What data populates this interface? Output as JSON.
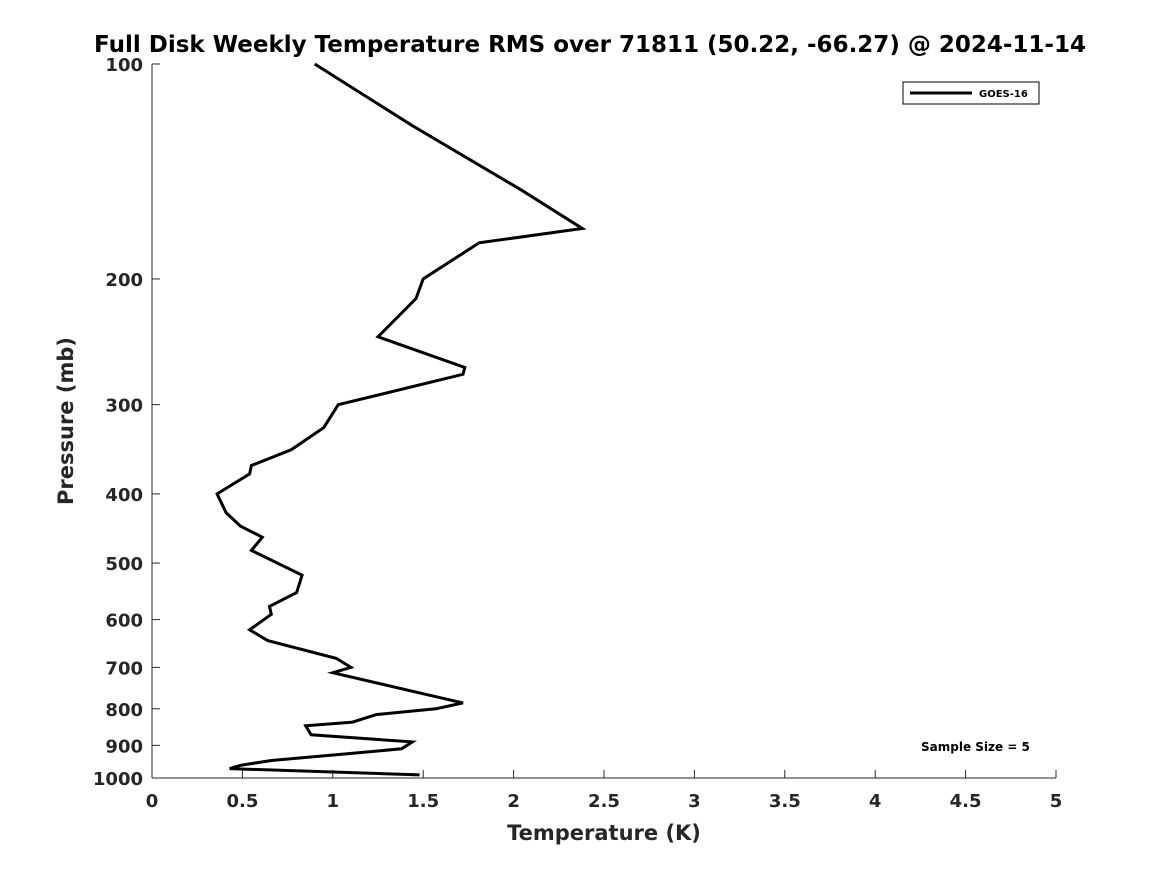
{
  "chart_data": {
    "type": "line",
    "title": "Full Disk Weekly Temperature RMS over 71811 (50.22, -66.27) @ 2024-11-14",
    "xlabel": "Temperature (K)",
    "ylabel": "Pressure (mb)",
    "xlim": [
      0,
      5
    ],
    "ylim": [
      100,
      1000
    ],
    "yscale": "log",
    "y_reversed": true,
    "grid": false,
    "legend_position": "top-right",
    "x_ticks": [
      "0",
      "0.5",
      "1",
      "1.5",
      "2",
      "2.5",
      "3",
      "3.5",
      "4",
      "4.5",
      "5"
    ],
    "y_ticks": [
      "100",
      "200",
      "300",
      "400",
      "500",
      "600",
      "700",
      "800",
      "900",
      "1000"
    ],
    "series": [
      {
        "name": "GOES-16",
        "color": "#000000",
        "x": [
          0.9,
          1.44,
          2.04,
          2.38,
          1.81,
          1.5,
          1.46,
          1.25,
          1.73,
          1.72,
          1.03,
          0.95,
          0.77,
          0.55,
          0.54,
          0.36,
          0.41,
          0.49,
          0.61,
          0.55,
          0.83,
          0.8,
          0.65,
          0.66,
          0.54,
          0.64,
          1.02,
          1.1,
          1.0,
          1.48,
          1.72,
          1.57,
          1.24,
          1.11,
          0.85,
          0.88,
          1.44,
          1.38,
          1.08,
          0.66,
          0.49,
          0.43,
          1.48
        ],
        "y": [
          100,
          122,
          150,
          170,
          178,
          200,
          213,
          241,
          266,
          272,
          300,
          323,
          347,
          365,
          375,
          400,
          425,
          444,
          460,
          480,
          520,
          550,
          575,
          590,
          620,
          642,
          680,
          700,
          712,
          760,
          785,
          800,
          815,
          835,
          845,
          870,
          890,
          910,
          925,
          945,
          960,
          970,
          990
        ]
      }
    ],
    "annotations": [
      "Sample Size = 5"
    ]
  }
}
